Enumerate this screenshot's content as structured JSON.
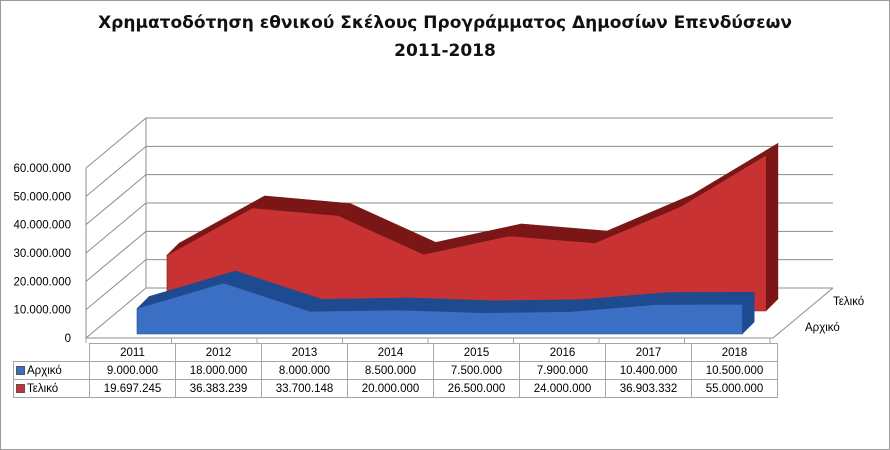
{
  "colors": {
    "arxiko": "#3a6fc4",
    "teliko": "#c83232"
  },
  "chart_data": {
    "type": "area",
    "title": "Χρηματοδότηση  εθνικού Σκέλους Προγράμματος Δημοσίων Επενδύσεων",
    "subtitle": "2011-2018",
    "categories": [
      "2011",
      "2012",
      "2013",
      "2014",
      "2015",
      "2016",
      "2017",
      "2018"
    ],
    "series": [
      {
        "name": "Αρχικό",
        "values": [
          9000000,
          18000000,
          8000000,
          8500000,
          7500000,
          7900000,
          10400000,
          10500000
        ],
        "labels": [
          "9.000.000",
          "18.000.000",
          "8.000.000",
          "8.500.000",
          "7.500.000",
          "7.900.000",
          "10.400.000",
          "10.500.000"
        ]
      },
      {
        "name": "Τελικό",
        "values": [
          19697245,
          36383239,
          33700148,
          20000000,
          26500000,
          24000000,
          36903332,
          55000000
        ],
        "labels": [
          "19.697.245",
          "36.383.239",
          "33.700.148",
          "20.000.000",
          "26.500.000",
          "24.000.000",
          "36.903.332",
          "55.000.000"
        ]
      }
    ],
    "ylim": [
      0,
      60000000
    ],
    "yticks": [
      "0",
      "10.000.000",
      "20.000.000",
      "30.000.000",
      "40.000.000",
      "50.000.000",
      "60.000.000"
    ],
    "depth_labels": [
      "Τελικό",
      "Αρχικό"
    ],
    "grid": true,
    "legend": "data-table"
  }
}
